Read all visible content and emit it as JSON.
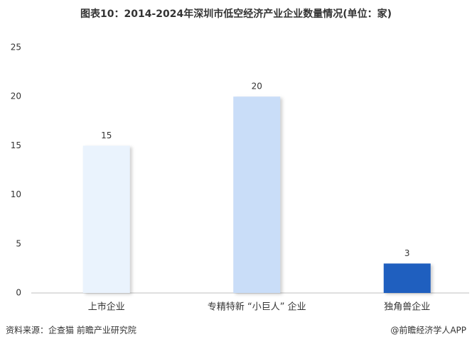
{
  "chart_data": {
    "type": "bar",
    "title": "图表10：2014-2024年深圳市低空经济产业企业数量情况(单位：家)",
    "categories": [
      "上市企业",
      "专精特新 “小巨人” 企业",
      "独角兽企业"
    ],
    "values": [
      15,
      20,
      3
    ],
    "colors": [
      "#eaf3fd",
      "#c9ddf8",
      "#1f5fbf"
    ],
    "ylim": [
      0,
      25
    ],
    "yticks": [
      0,
      5,
      10,
      15,
      20,
      25
    ],
    "grid": false,
    "source": "资料来源：企查猫 前瞻产业研究院",
    "credit": "@前瞻经济学人APP"
  }
}
